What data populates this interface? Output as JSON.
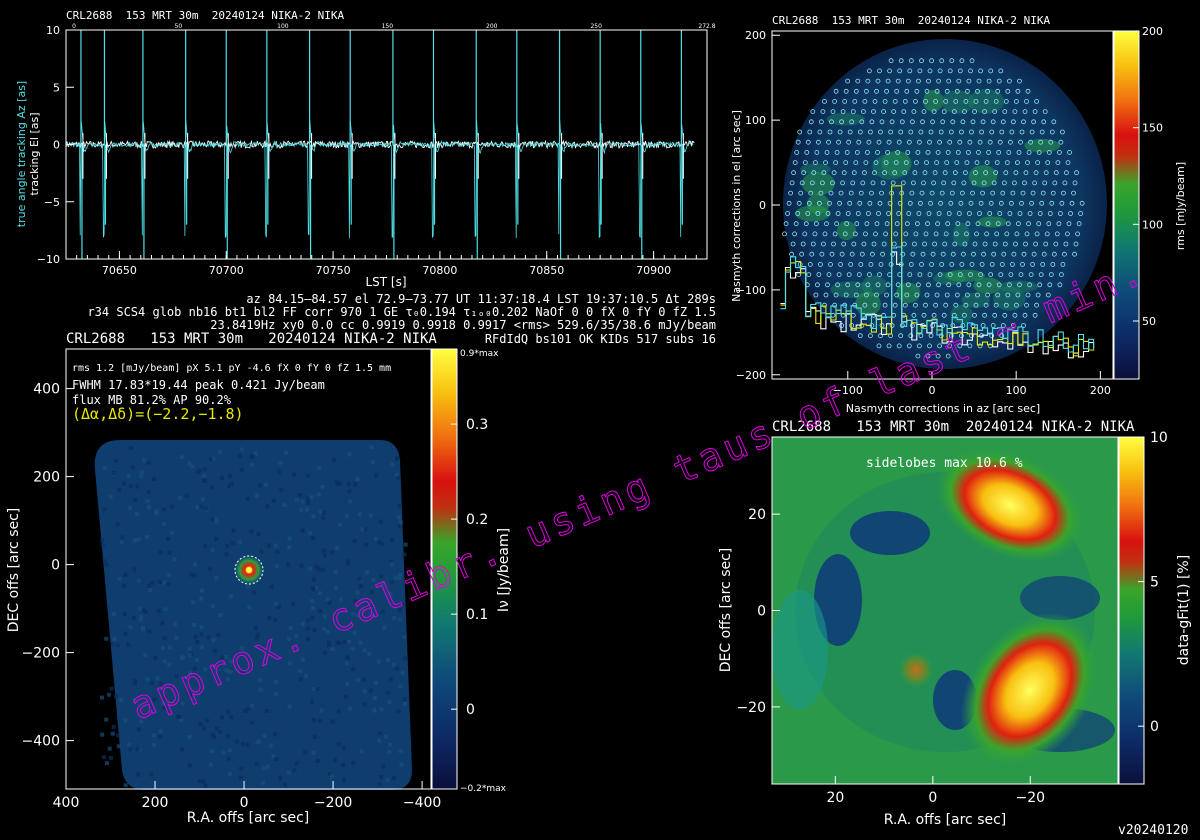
{
  "source": "CRL2688",
  "scan": "153",
  "telescope": "MRT 30m",
  "date": "20240124",
  "instrument": "NIKA-2",
  "header_short": "CRL2688  153 MRT 30m  20240124 NIKA-2 NIKA",
  "header_long": "CRL2688   153 MRT 30m   20240124 NIKA-2 NIKA",
  "header_mid": "CRL2688   153 MRT 30m  20240124 NIKA-2 NIKA",
  "info_lines": [
    "az 84.15–84.57 el 72.9–73.77 UT 11:37:18.4 LST 19:37:10.5 Δt 289s",
    "r34 SCS4 glob nb16 bt1 bl2 FF corr 970 1 GE τ₀0.194 τ₁ₒ₀0.202 NaOf 0 0 fX 0 fY 0 fZ 1.5",
    "23.8419Hz xy0 0.0 cc 0.9919 0.9918 0.9917 <rms> 529.6/35/38.6 mJy/beam",
    "RFdIdQ bs101 OK KIDs 517 subs 16"
  ],
  "map_info": {
    "line1": "rms 1.2 [mJy/beam] pX 5.1 pY -4.6 fX 0 fY 0 fZ 1.5 mm",
    "line2": "FWHM 17.83*19.44 peak 0.421 Jy/beam",
    "line3": "flux MB 81.2% AP 90.2%",
    "offset": "(Δα,Δδ)=(−2.2,−1.8)"
  },
  "watermark": "approx. calibr. using taus of last ~ min.",
  "sidelobes_label": "sidelobes max 10.6 %",
  "version": "v20240120",
  "colors": {
    "cyan": "#4fe0e8",
    "yellow": "#e8e800",
    "magenta": "#e000e0",
    "white": "#ffffff"
  },
  "chart_data": [
    {
      "type": "line",
      "id": "tracking",
      "title": "CRL2688  153 MRT 30m  20240124 NIKA-2 NIKA",
      "xlabel": "LST [s]",
      "ylabel_series": [
        "true angle tracking Az [as]",
        "tracking El [as]"
      ],
      "xlim": [
        70625,
        70925
      ],
      "ylim": [
        -10,
        10
      ],
      "x_ticks": [
        70650,
        70700,
        70750,
        70800,
        70850,
        70900
      ],
      "y_ticks": [
        -10,
        -5,
        0,
        5,
        10
      ],
      "top_ticks": [
        "0",
        "50",
        "100",
        "150",
        "200",
        "250",
        "272.8"
      ],
      "series": [
        {
          "name": "true angle tracking Az [as]",
          "color": "#4fe0e8",
          "spikes_x": [
            70632,
            70643,
            70661,
            70681,
            70700,
            70719,
            70739,
            70758,
            70778,
            70797,
            70817,
            70836,
            70856,
            70875,
            70894,
            70913
          ],
          "spike_amplitude": 10,
          "baseline": 0
        },
        {
          "name": "tracking El [as]",
          "color": "#ffffff",
          "baseline": 0,
          "noise": 0.3
        }
      ]
    },
    {
      "type": "heatmap",
      "id": "nasmyth",
      "title": "CRL2688  153 MRT 30m  20240124 NIKA-2 NIKA",
      "xlabel": "Nasmyth corrections in az [arc sec]",
      "ylabel": "Nasmyth corrections in el [arc sec]",
      "xlim": [
        -190,
        215
      ],
      "ylim": [
        -205,
        205
      ],
      "x_ticks": [
        -100,
        0,
        100,
        200
      ],
      "y_ticks": [
        -200,
        -100,
        0,
        100,
        200
      ],
      "colorbar": {
        "label": "rms [mJy/beam]",
        "ticks": [
          50,
          100,
          150,
          200
        ],
        "range": [
          20,
          200
        ]
      },
      "disk_radius": 180,
      "overlay_series": [
        {
          "name": "white-profile",
          "color": "#ffffff"
        },
        {
          "name": "yellow-profile",
          "color": "#e8e800"
        },
        {
          "name": "cyan-profile",
          "color": "#4fe0e8"
        }
      ]
    },
    {
      "type": "heatmap",
      "id": "map",
      "title": "CRL2688   153 MRT 30m   20240124 NIKA-2 NIKA",
      "xlabel": "R.A. offs [arc sec]",
      "ylabel": "DEC offs [arc sec]",
      "xlim": [
        400,
        -420
      ],
      "ylim": [
        -510,
        490
      ],
      "x_ticks": [
        400,
        200,
        0,
        -200,
        -400
      ],
      "y_ticks": [
        400,
        200,
        0,
        -200,
        -400
      ],
      "colorbar": {
        "label": "Iν [Jy/beam]",
        "ticks": [
          0,
          0.1,
          0.2,
          0.3
        ],
        "range": [
          -0.084,
          0.379
        ],
        "top_label": "0.9*max",
        "bottom_label": "−0.2*max"
      },
      "peak": {
        "x": -2.2,
        "y": -1.8,
        "value": 0.421
      }
    },
    {
      "type": "heatmap",
      "id": "residual",
      "title": "CRL2688   153 MRT 30m  20240124 NIKA-2 NIKA",
      "xlabel": "R.A. offs [arc sec]",
      "ylabel": "DEC offs [arc sec]",
      "xlim": [
        33,
        -38
      ],
      "ylim": [
        -36,
        36
      ],
      "x_ticks": [
        20,
        0,
        -20
      ],
      "y_ticks": [
        -20,
        0,
        20
      ],
      "colorbar": {
        "label": "data-gFit(1) [%]",
        "ticks": [
          0,
          5,
          10
        ],
        "range": [
          -2,
          10
        ]
      },
      "lobes": [
        {
          "x": -17,
          "y": 20,
          "value": 10.6
        },
        {
          "x": -20,
          "y": -20,
          "value": 10.6
        },
        {
          "x": 3,
          "y": -8,
          "value": 4
        }
      ]
    }
  ]
}
